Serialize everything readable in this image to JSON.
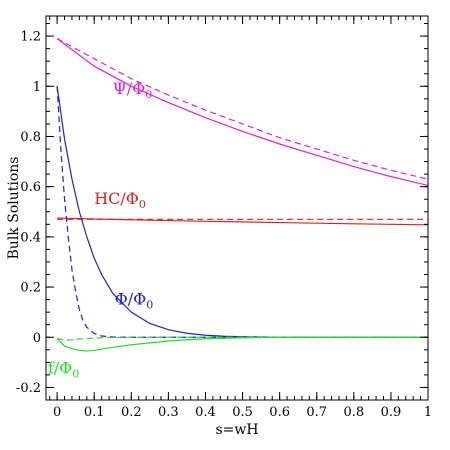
{
  "chart_data": {
    "type": "line",
    "xlabel": "s=wH",
    "ylabel": "Bulk Solutions",
    "xlim": [
      -0.03,
      1.0
    ],
    "ylim": [
      -0.25,
      1.28
    ],
    "x_ticks": [
      "0",
      "0.1",
      "0.2",
      "0.3",
      "0.4",
      "0.5",
      "0.6",
      "0.7",
      "0.8",
      "0.9",
      "1"
    ],
    "y_ticks": [
      "-0.2",
      "0",
      "0.2",
      "0.4",
      "0.6",
      "0.8",
      "1",
      "1.2"
    ],
    "grid": false,
    "legend": "none",
    "series": [
      {
        "label_main": "Ψ/Φ",
        "label_sub": "0",
        "color": "#e020e0",
        "label_x": 0.15,
        "label_y": 0.97,
        "solid": {
          "x": [
            0,
            0.1,
            0.2,
            0.3,
            0.4,
            0.5,
            0.6,
            0.7,
            0.8,
            0.9,
            1.0
          ],
          "y": [
            1.19,
            1.08,
            1.0,
            0.935,
            0.875,
            0.82,
            0.77,
            0.725,
            0.68,
            0.64,
            0.605
          ]
        },
        "dashed": {
          "x": [
            0,
            0.1,
            0.2,
            0.3,
            0.4,
            0.5,
            0.6,
            0.7,
            0.8,
            0.9,
            1.0
          ],
          "y": [
            1.19,
            1.11,
            1.03,
            0.965,
            0.905,
            0.85,
            0.795,
            0.75,
            0.705,
            0.665,
            0.63
          ]
        }
      },
      {
        "label_main": "HC/Φ",
        "label_sub": "0",
        "color": "#e02020",
        "label_x": 0.1,
        "label_y": 0.53,
        "solid": {
          "x": [
            0,
            0.2,
            0.4,
            0.6,
            0.8,
            1.0
          ],
          "y": [
            0.475,
            0.468,
            0.462,
            0.457,
            0.452,
            0.448
          ]
        },
        "dashed": {
          "x": [
            0,
            0.2,
            0.4,
            0.6,
            0.8,
            1.0
          ],
          "y": [
            0.47,
            0.47,
            0.47,
            0.47,
            0.47,
            0.47
          ]
        }
      },
      {
        "label_main": "Φ/Φ",
        "label_sub": "0",
        "color": "#2020d0",
        "label_x": 0.155,
        "label_y": 0.13,
        "solid": {
          "x": [
            0,
            0.02,
            0.04,
            0.06,
            0.08,
            0.1,
            0.12,
            0.15,
            0.2,
            0.25,
            0.3,
            0.35,
            0.4,
            0.45,
            0.5,
            0.6,
            0.8,
            1.0
          ],
          "y": [
            1.0,
            0.79,
            0.63,
            0.5,
            0.4,
            0.315,
            0.25,
            0.175,
            0.1,
            0.055,
            0.03,
            0.016,
            0.008,
            0.004,
            0.002,
            0,
            0,
            0
          ]
        },
        "dashed": {
          "x": [
            0,
            0.01,
            0.02,
            0.03,
            0.04,
            0.05,
            0.06,
            0.07,
            0.08,
            0.1,
            0.12,
            0.15,
            0.2,
            0.4,
            0.6,
            0.8,
            1.0
          ],
          "y": [
            1.0,
            0.75,
            0.55,
            0.4,
            0.27,
            0.18,
            0.11,
            0.065,
            0.04,
            0.015,
            0.005,
            0.001,
            0,
            0,
            0,
            0,
            0
          ]
        }
      },
      {
        "label_main": "f/Φ",
        "label_sub": "0",
        "color": "#20e020",
        "label_x": -0.025,
        "label_y": -0.145,
        "solid": {
          "x": [
            0,
            0.02,
            0.05,
            0.08,
            0.1,
            0.15,
            0.2,
            0.3,
            0.4,
            0.5,
            0.6,
            0.8,
            1.0
          ],
          "y": [
            -0.005,
            -0.035,
            -0.05,
            -0.055,
            -0.052,
            -0.04,
            -0.03,
            -0.015,
            -0.006,
            -0.002,
            0,
            0,
            0
          ]
        },
        "dashed": {
          "x": [
            0,
            0.02,
            0.04,
            0.06,
            0.08,
            0.1,
            0.15,
            0.2,
            0.4,
            0.6,
            0.8,
            1.0
          ],
          "y": [
            -0.005,
            -0.012,
            -0.01,
            -0.007,
            -0.005,
            -0.003,
            -0.001,
            0,
            0,
            0,
            0,
            0
          ]
        }
      }
    ]
  }
}
